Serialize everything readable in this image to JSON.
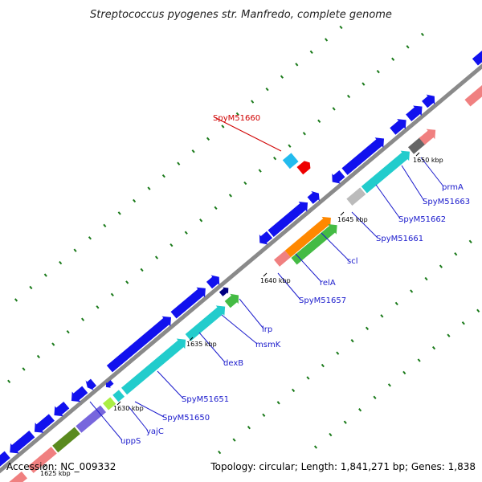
{
  "header": {
    "title": "Streptococcus pyogenes str. Manfredo, complete genome"
  },
  "footer": {
    "accession": "Accession: NC_009332",
    "stats": "Topology: circular; Length: 1,841,271 bp; Genes: 1,838"
  },
  "colors": {
    "backbone": "#8a8a8a",
    "tick_minor": "#1a7a1a",
    "tick_major": "#000000",
    "label_link": "#1a1acc",
    "label_highlight": "#d00000",
    "blue": "#1111ee",
    "cyan": "#22cccc",
    "red": "#ee0000",
    "pink": "#f08080",
    "purple": "#7766dd",
    "olive": "#5a8a1e",
    "orange": "#ff8800",
    "green": "#44bb44",
    "navy": "#000080",
    "gray": "#666666",
    "lightgray": "#bbbbbb",
    "lightblue": "#22bbee",
    "magenta": "#ff33aa",
    "steelblue": "#4477bb",
    "lime": "#aaee44"
  },
  "scale_labels": [
    {
      "text": "1625 kbp",
      "visible": "partial"
    },
    {
      "text": "1630 kbp"
    },
    {
      "text": "1635 kbp"
    },
    {
      "text": "1640 kbp"
    },
    {
      "text": "1645 kbp"
    },
    {
      "text": "1650 kbp"
    }
  ],
  "gene_labels": [
    {
      "text": "uppS",
      "highlight": false
    },
    {
      "text": "yajC",
      "highlight": false
    },
    {
      "text": "SpyM51650",
      "highlight": false
    },
    {
      "text": "SpyM51651",
      "highlight": false
    },
    {
      "text": "dexB",
      "highlight": false
    },
    {
      "text": "msmK",
      "highlight": false
    },
    {
      "text": "lrp",
      "highlight": false
    },
    {
      "text": "SpyM51657",
      "highlight": false
    },
    {
      "text": "relA",
      "highlight": false
    },
    {
      "text": "scl",
      "highlight": false
    },
    {
      "text": "SpyM51661",
      "highlight": false
    },
    {
      "text": "SpyM51662",
      "highlight": false
    },
    {
      "text": "SpyM51663",
      "highlight": false
    },
    {
      "text": "prmA",
      "highlight": false
    },
    {
      "text": "SpyM51660",
      "highlight": true
    }
  ]
}
